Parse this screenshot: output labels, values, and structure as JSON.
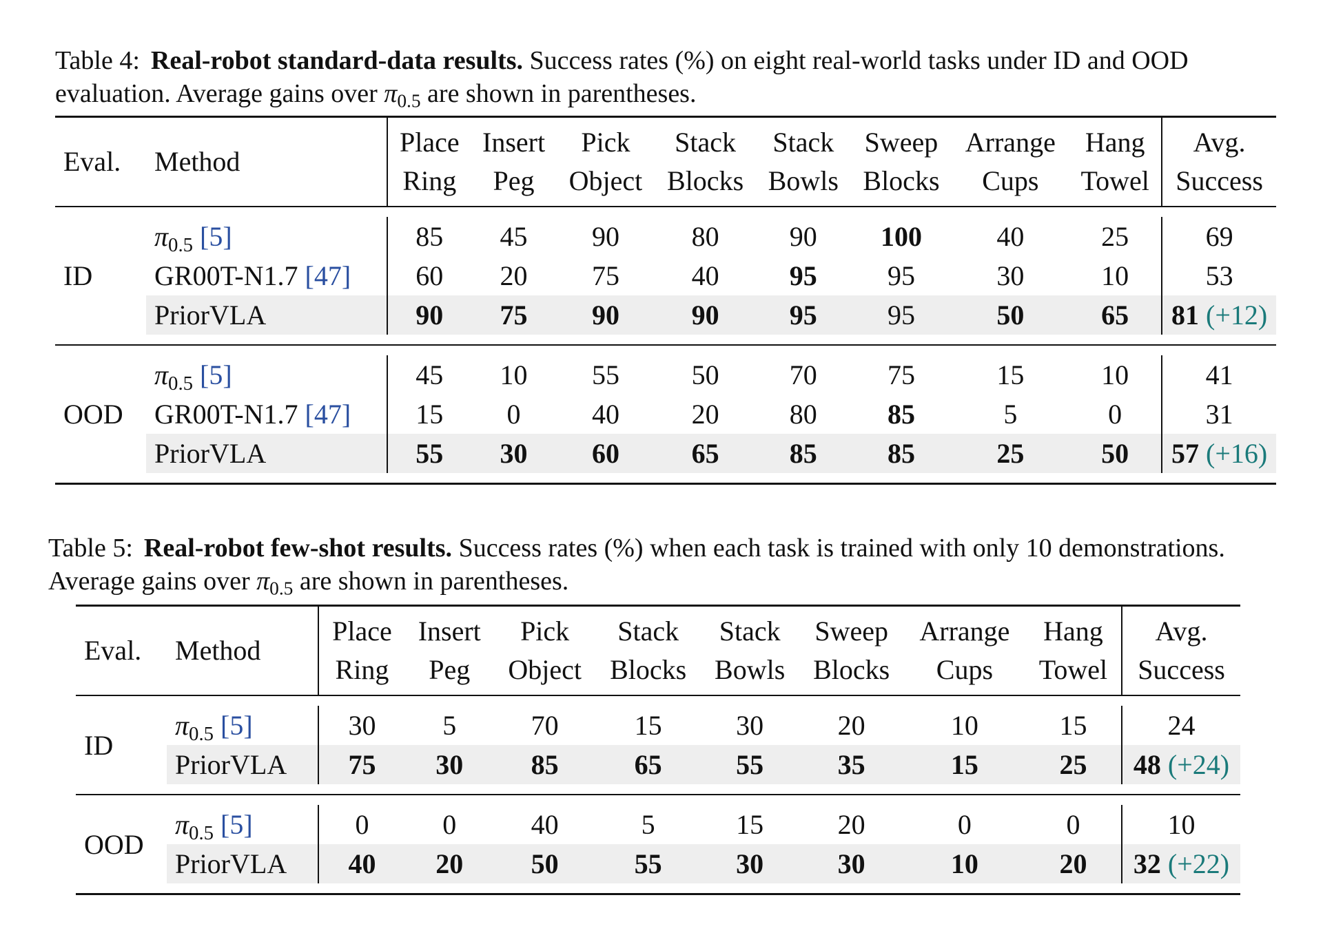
{
  "table4": {
    "label": "Table 4:",
    "title": "Real-robot standard-data results.",
    "caption_pre": " Success rates (%) on eight real-world tasks under ID and OOD evaluation. Average gains over ",
    "caption_post": " are shown in parentheses.",
    "headers": {
      "eval": "Eval.",
      "method": "Method",
      "columns": [
        [
          "Place",
          "Ring"
        ],
        [
          "Insert",
          "Peg"
        ],
        [
          "Pick",
          "Object"
        ],
        [
          "Stack",
          "Blocks"
        ],
        [
          "Stack",
          "Bowls"
        ],
        [
          "Sweep",
          "Blocks"
        ],
        [
          "Arrange",
          "Cups"
        ],
        [
          "Hang",
          "Towel"
        ]
      ],
      "avg": [
        "Avg.",
        "Success"
      ]
    },
    "groups": [
      {
        "eval": "ID",
        "rows": [
          {
            "method": "π0.5",
            "ref": "[5]",
            "values": [
              "85",
              "45",
              "90",
              "80",
              "90",
              "100",
              "40",
              "25"
            ],
            "bold": [
              false,
              false,
              false,
              false,
              false,
              true,
              false,
              false
            ],
            "avg": "69",
            "avg_bold": false,
            "gain": "",
            "highlight": false
          },
          {
            "method": "GR00T-N1.7",
            "ref": "[47]",
            "values": [
              "60",
              "20",
              "75",
              "40",
              "95",
              "95",
              "30",
              "10"
            ],
            "bold": [
              false,
              false,
              false,
              false,
              true,
              false,
              false,
              false
            ],
            "avg": "53",
            "avg_bold": false,
            "gain": "",
            "highlight": false
          },
          {
            "method": "PriorVLA",
            "ref": "",
            "values": [
              "90",
              "75",
              "90",
              "90",
              "95",
              "95",
              "50",
              "65"
            ],
            "bold": [
              true,
              true,
              true,
              true,
              true,
              false,
              true,
              true
            ],
            "avg": "81",
            "avg_bold": true,
            "gain": "(+12)",
            "highlight": true
          }
        ]
      },
      {
        "eval": "OOD",
        "rows": [
          {
            "method": "π0.5",
            "ref": "[5]",
            "values": [
              "45",
              "10",
              "55",
              "50",
              "70",
              "75",
              "15",
              "10"
            ],
            "bold": [
              false,
              false,
              false,
              false,
              false,
              false,
              false,
              false
            ],
            "avg": "41",
            "avg_bold": false,
            "gain": "",
            "highlight": false
          },
          {
            "method": "GR00T-N1.7",
            "ref": "[47]",
            "values": [
              "15",
              "0",
              "40",
              "20",
              "80",
              "85",
              "5",
              "0"
            ],
            "bold": [
              false,
              false,
              false,
              false,
              false,
              true,
              false,
              false
            ],
            "avg": "31",
            "avg_bold": false,
            "gain": "",
            "highlight": false
          },
          {
            "method": "PriorVLA",
            "ref": "",
            "values": [
              "55",
              "30",
              "60",
              "65",
              "85",
              "85",
              "25",
              "50"
            ],
            "bold": [
              true,
              true,
              true,
              true,
              true,
              true,
              true,
              true
            ],
            "avg": "57",
            "avg_bold": true,
            "gain": "(+16)",
            "highlight": true
          }
        ]
      }
    ]
  },
  "table5": {
    "label": "Table 5:",
    "title": "Real-robot few-shot results.",
    "caption_pre": " Success rates (%) when each task is trained with only 10 demonstrations. Average gains over ",
    "caption_post": " are shown in parentheses.",
    "headers": {
      "eval": "Eval.",
      "method": "Method",
      "columns": [
        [
          "Place",
          "Ring"
        ],
        [
          "Insert",
          "Peg"
        ],
        [
          "Pick",
          "Object"
        ],
        [
          "Stack",
          "Blocks"
        ],
        [
          "Stack",
          "Bowls"
        ],
        [
          "Sweep",
          "Blocks"
        ],
        [
          "Arrange",
          "Cups"
        ],
        [
          "Hang",
          "Towel"
        ]
      ],
      "avg": [
        "Avg.",
        "Success"
      ]
    },
    "groups": [
      {
        "eval": "ID",
        "rows": [
          {
            "method": "π0.5",
            "ref": "[5]",
            "values": [
              "30",
              "5",
              "70",
              "15",
              "30",
              "20",
              "10",
              "15"
            ],
            "bold": [
              false,
              false,
              false,
              false,
              false,
              false,
              false,
              false
            ],
            "avg": "24",
            "avg_bold": false,
            "gain": "",
            "highlight": false
          },
          {
            "method": "PriorVLA",
            "ref": "",
            "values": [
              "75",
              "30",
              "85",
              "65",
              "55",
              "35",
              "15",
              "25"
            ],
            "bold": [
              true,
              true,
              true,
              true,
              true,
              true,
              true,
              true
            ],
            "avg": "48",
            "avg_bold": true,
            "gain": "(+24)",
            "highlight": true
          }
        ]
      },
      {
        "eval": "OOD",
        "rows": [
          {
            "method": "π0.5",
            "ref": "[5]",
            "values": [
              "0",
              "0",
              "40",
              "5",
              "15",
              "20",
              "0",
              "0"
            ],
            "bold": [
              false,
              false,
              false,
              false,
              false,
              false,
              false,
              false
            ],
            "avg": "10",
            "avg_bold": false,
            "gain": "",
            "highlight": false
          },
          {
            "method": "PriorVLA",
            "ref": "",
            "values": [
              "40",
              "20",
              "50",
              "55",
              "30",
              "30",
              "10",
              "20"
            ],
            "bold": [
              true,
              true,
              true,
              true,
              true,
              true,
              true,
              true
            ],
            "avg": "32",
            "avg_bold": true,
            "gain": "(+22)",
            "highlight": true
          }
        ]
      }
    ]
  }
}
